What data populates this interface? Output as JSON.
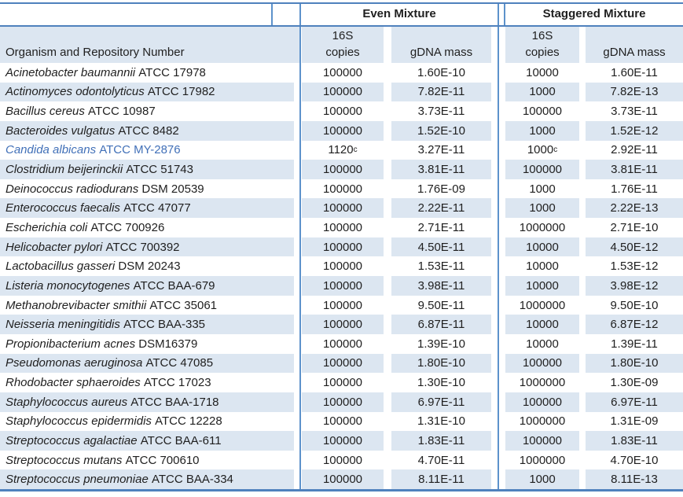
{
  "table": {
    "organism_header": "Organism and Repository Number",
    "groups": [
      {
        "label": "Even Mixture"
      },
      {
        "label": "Staggered Mixture"
      }
    ],
    "subheaders": {
      "copies_top": "16S",
      "copies_bottom": "copies",
      "gdna": "gDNA mass"
    },
    "colors": {
      "band": "#dce6f1",
      "border": "#4f81bd",
      "inner_border": "#5d92cb",
      "highlight_text": "#4170b8",
      "text": "#1f1f1f"
    },
    "rows": [
      {
        "organism": "Acinetobacter baumannii",
        "repository": "ATCC 17978",
        "even_16s_copies": "100000",
        "even_gdna_mass": "1.60E-10",
        "staggered_16s_copies": "10000",
        "staggered_gdna_mass": "1.60E-11"
      },
      {
        "organism": "Actinomyces odontolyticus",
        "repository": "ATCC 17982",
        "even_16s_copies": "100000",
        "even_gdna_mass": "7.82E-11",
        "staggered_16s_copies": "1000",
        "staggered_gdna_mass": "7.82E-13"
      },
      {
        "organism": "Bacillus cereus",
        "repository": "ATCC 10987",
        "even_16s_copies": "100000",
        "even_gdna_mass": "3.73E-11",
        "staggered_16s_copies": "100000",
        "staggered_gdna_mass": "3.73E-11"
      },
      {
        "organism": "Bacteroides vulgatus",
        "repository": "ATCC 8482",
        "even_16s_copies": "100000",
        "even_gdna_mass": "1.52E-10",
        "staggered_16s_copies": "1000",
        "staggered_gdna_mass": "1.52E-12"
      },
      {
        "organism": "Candida albicans",
        "repository": "ATCC MY-2876",
        "even_16s_copies": "1120",
        "even_copies_superscript": "c",
        "even_gdna_mass": "3.27E-11",
        "staggered_16s_copies": "1000",
        "staggered_copies_superscript": "c",
        "staggered_gdna_mass": "2.92E-11",
        "highlighted": true
      },
      {
        "organism": "Clostridium beijerinckii",
        "repository": "ATCC 51743",
        "even_16s_copies": "100000",
        "even_gdna_mass": "3.81E-11",
        "staggered_16s_copies": "100000",
        "staggered_gdna_mass": "3.81E-11"
      },
      {
        "organism": "Deinococcus radiodurans",
        "repository": "DSM 20539",
        "even_16s_copies": "100000",
        "even_gdna_mass": "1.76E-09",
        "staggered_16s_copies": "1000",
        "staggered_gdna_mass": "1.76E-11"
      },
      {
        "organism": "Enterococcus faecalis",
        "repository": "ATCC 47077",
        "even_16s_copies": "100000",
        "even_gdna_mass": "2.22E-11",
        "staggered_16s_copies": "1000",
        "staggered_gdna_mass": "2.22E-13"
      },
      {
        "organism": "Escherichia coli",
        "repository": "ATCC 700926",
        "even_16s_copies": "100000",
        "even_gdna_mass": "2.71E-11",
        "staggered_16s_copies": "1000000",
        "staggered_gdna_mass": "2.71E-10"
      },
      {
        "organism": "Helicobacter pylori",
        "repository": "ATCC 700392",
        "even_16s_copies": "100000",
        "even_gdna_mass": "4.50E-11",
        "staggered_16s_copies": "10000",
        "staggered_gdna_mass": "4.50E-12"
      },
      {
        "organism": "Lactobacillus gasseri",
        "repository": "DSM 20243",
        "even_16s_copies": "100000",
        "even_gdna_mass": "1.53E-11",
        "staggered_16s_copies": "10000",
        "staggered_gdna_mass": "1.53E-12"
      },
      {
        "organism": "Listeria monocytogenes",
        "repository": "ATCC BAA-679",
        "even_16s_copies": "100000",
        "even_gdna_mass": "3.98E-11",
        "staggered_16s_copies": "10000",
        "staggered_gdna_mass": "3.98E-12"
      },
      {
        "organism": "Methanobrevibacter smithii",
        "repository": "ATCC 35061",
        "even_16s_copies": "100000",
        "even_gdna_mass": "9.50E-11",
        "staggered_16s_copies": "1000000",
        "staggered_gdna_mass": "9.50E-10"
      },
      {
        "organism": "Neisseria meningitidis",
        "repository": "ATCC BAA-335",
        "even_16s_copies": "100000",
        "even_gdna_mass": "6.87E-11",
        "staggered_16s_copies": "10000",
        "staggered_gdna_mass": "6.87E-12"
      },
      {
        "organism": "Propionibacterium acnes",
        "repository": "DSM16379",
        "even_16s_copies": "100000",
        "even_gdna_mass": "1.39E-10",
        "staggered_16s_copies": "10000",
        "staggered_gdna_mass": "1.39E-11"
      },
      {
        "organism": "Pseudomonas aeruginosa",
        "repository": "ATCC 47085",
        "even_16s_copies": "100000",
        "even_gdna_mass": "1.80E-10",
        "staggered_16s_copies": "100000",
        "staggered_gdna_mass": "1.80E-10"
      },
      {
        "organism": "Rhodobacter sphaeroides",
        "repository": "ATCC 17023",
        "even_16s_copies": "100000",
        "even_gdna_mass": "1.30E-10",
        "staggered_16s_copies": "1000000",
        "staggered_gdna_mass": "1.30E-09"
      },
      {
        "organism": "Staphylococcus aureus",
        "repository": "ATCC BAA-1718",
        "even_16s_copies": "100000",
        "even_gdna_mass": "6.97E-11",
        "staggered_16s_copies": "100000",
        "staggered_gdna_mass": "6.97E-11"
      },
      {
        "organism": "Staphylococcus epidermidis",
        "repository": "ATCC 12228",
        "even_16s_copies": "100000",
        "even_gdna_mass": "1.31E-10",
        "staggered_16s_copies": "1000000",
        "staggered_gdna_mass": "1.31E-09"
      },
      {
        "organism": "Streptococcus agalactiae",
        "repository": "ATCC BAA-611",
        "even_16s_copies": "100000",
        "even_gdna_mass": "1.83E-11",
        "staggered_16s_copies": "100000",
        "staggered_gdna_mass": "1.83E-11"
      },
      {
        "organism": "Streptococcus mutans",
        "repository": "ATCC 700610",
        "even_16s_copies": "100000",
        "even_gdna_mass": "4.70E-11",
        "staggered_16s_copies": "1000000",
        "staggered_gdna_mass": "4.70E-10"
      },
      {
        "organism": "Streptococcus pneumoniae",
        "repository": "ATCC BAA-334",
        "even_16s_copies": "100000",
        "even_gdna_mass": "8.11E-11",
        "staggered_16s_copies": "1000",
        "staggered_gdna_mass": "8.11E-13"
      }
    ]
  }
}
